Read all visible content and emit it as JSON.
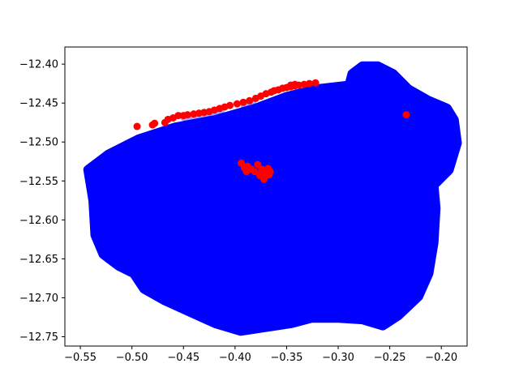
{
  "chart_data": {
    "type": "scatter",
    "title": "",
    "xlabel": "",
    "ylabel": "",
    "xlim": [
      -0.565,
      -0.175
    ],
    "ylim": [
      -12.762,
      -12.378
    ],
    "x_ticks": [
      -0.55,
      -0.5,
      -0.45,
      -0.4,
      -0.35,
      -0.3,
      -0.25,
      -0.2
    ],
    "x_tick_labels": [
      "−0.55",
      "−0.50",
      "−0.45",
      "−0.40",
      "−0.35",
      "−0.30",
      "−0.25",
      "−0.20"
    ],
    "y_ticks": [
      -12.4,
      -12.45,
      -12.5,
      -12.55,
      -12.6,
      -12.65,
      -12.7,
      -12.75
    ],
    "y_tick_labels": [
      "−12.40",
      "−12.45",
      "−12.50",
      "−12.55",
      "−12.60",
      "−12.65",
      "−12.70",
      "−12.75"
    ],
    "grid": false,
    "colors": {
      "blue_points": "#0000ff",
      "red_points": "#ff0000",
      "hull_fill": "#0000ff",
      "hull_fill_opacity": 0.2
    },
    "blue_region_outline": [
      [
        -0.545,
        -12.535
      ],
      [
        -0.54,
        -12.575
      ],
      [
        -0.538,
        -12.62
      ],
      [
        -0.53,
        -12.645
      ],
      [
        -0.515,
        -12.66
      ],
      [
        -0.5,
        -12.67
      ],
      [
        -0.49,
        -12.69
      ],
      [
        -0.47,
        -12.705
      ],
      [
        -0.445,
        -12.72
      ],
      [
        -0.42,
        -12.735
      ],
      [
        -0.395,
        -12.745
      ],
      [
        -0.37,
        -12.74
      ],
      [
        -0.345,
        -12.735
      ],
      [
        -0.325,
        -12.728
      ],
      [
        -0.3,
        -12.728
      ],
      [
        -0.275,
        -12.73
      ],
      [
        -0.255,
        -12.738
      ],
      [
        -0.24,
        -12.725
      ],
      [
        -0.22,
        -12.7
      ],
      [
        -0.21,
        -12.67
      ],
      [
        -0.205,
        -12.63
      ],
      [
        -0.203,
        -12.585
      ],
      [
        -0.205,
        -12.555
      ],
      [
        -0.19,
        -12.535
      ],
      [
        -0.182,
        -12.5
      ],
      [
        -0.185,
        -12.47
      ],
      [
        -0.192,
        -12.455
      ],
      [
        -0.21,
        -12.445
      ],
      [
        -0.23,
        -12.43
      ],
      [
        -0.245,
        -12.41
      ],
      [
        -0.26,
        -12.4
      ],
      [
        -0.275,
        -12.4
      ],
      [
        -0.285,
        -12.41
      ],
      [
        -0.288,
        -12.425
      ],
      [
        -0.32,
        -12.43
      ],
      [
        -0.35,
        -12.44
      ],
      [
        -0.38,
        -12.455
      ],
      [
        -0.42,
        -12.47
      ],
      [
        -0.46,
        -12.48
      ],
      [
        -0.495,
        -12.495
      ],
      [
        -0.525,
        -12.515
      ]
    ],
    "red_points": [
      [
        -0.495,
        -12.48
      ],
      [
        -0.48,
        -12.478
      ],
      [
        -0.478,
        -12.476
      ],
      [
        -0.468,
        -12.475
      ],
      [
        -0.465,
        -12.471
      ],
      [
        -0.46,
        -12.469
      ],
      [
        -0.455,
        -12.466
      ],
      [
        -0.45,
        -12.466
      ],
      [
        -0.446,
        -12.465
      ],
      [
        -0.44,
        -12.464
      ],
      [
        -0.435,
        -12.463
      ],
      [
        -0.43,
        -12.462
      ],
      [
        -0.425,
        -12.461
      ],
      [
        -0.42,
        -12.459
      ],
      [
        -0.415,
        -12.457
      ],
      [
        -0.41,
        -12.455
      ],
      [
        -0.405,
        -12.453
      ],
      [
        -0.398,
        -12.451
      ],
      [
        -0.392,
        -12.449
      ],
      [
        -0.386,
        -12.447
      ],
      [
        -0.38,
        -12.444
      ],
      [
        -0.375,
        -12.441
      ],
      [
        -0.37,
        -12.438
      ],
      [
        -0.365,
        -12.436
      ],
      [
        -0.362,
        -12.434
      ],
      [
        -0.358,
        -12.433
      ],
      [
        -0.354,
        -12.431
      ],
      [
        -0.35,
        -12.43
      ],
      [
        -0.346,
        -12.429
      ],
      [
        -0.342,
        -12.428
      ],
      [
        -0.338,
        -12.427
      ],
      [
        -0.333,
        -12.426
      ],
      [
        -0.328,
        -12.425
      ],
      [
        -0.322,
        -12.424
      ],
      [
        -0.346,
        -12.427
      ],
      [
        -0.342,
        -12.426
      ],
      [
        -0.234,
        -12.465
      ],
      [
        -0.394,
        -12.527
      ],
      [
        -0.391,
        -12.533
      ],
      [
        -0.388,
        -12.531
      ],
      [
        -0.384,
        -12.535
      ],
      [
        -0.381,
        -12.538
      ],
      [
        -0.378,
        -12.529
      ],
      [
        -0.376,
        -12.543
      ],
      [
        -0.374,
        -12.535
      ],
      [
        -0.372,
        -12.548
      ],
      [
        -0.37,
        -12.54
      ],
      [
        -0.368,
        -12.534
      ],
      [
        -0.366,
        -12.538
      ],
      [
        -0.371,
        -12.545
      ],
      [
        -0.367,
        -12.542
      ],
      [
        -0.375,
        -12.54
      ],
      [
        -0.389,
        -12.538
      ]
    ],
    "hull_spikes": [
      [
        [
          -0.455,
          -12.468
        ],
        [
          -0.412,
          -12.456
        ],
        [
          -0.385,
          -12.532
        ],
        [
          -0.398,
          -12.536
        ]
      ],
      [
        [
          -0.395,
          -12.45
        ],
        [
          -0.38,
          -12.445
        ],
        [
          -0.372,
          -12.54
        ],
        [
          -0.383,
          -12.545
        ]
      ]
    ]
  }
}
